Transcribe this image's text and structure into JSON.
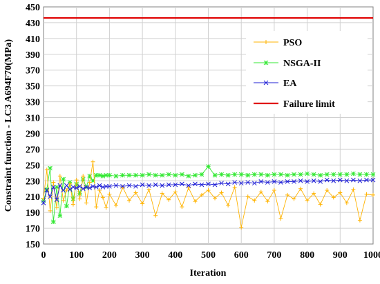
{
  "chart_data": {
    "type": "line",
    "title": "",
    "xlabel": "Iteration",
    "ylabel": "Constraint function - LC3 A694F70(MPa)",
    "xlim": [
      0,
      1000
    ],
    "ylim": [
      150,
      450
    ],
    "xticks": [
      0,
      100,
      200,
      300,
      400,
      500,
      600,
      700,
      800,
      900,
      1000
    ],
    "yticks": [
      150,
      170,
      190,
      210,
      230,
      250,
      270,
      290,
      310,
      330,
      350,
      370,
      390,
      410,
      430,
      450
    ],
    "grid": true,
    "legend_position": "top-right",
    "series": [
      {
        "name": "PSO",
        "color": "#FFB300",
        "marker": "plus",
        "x": [
          0,
          10,
          20,
          30,
          40,
          50,
          60,
          70,
          80,
          90,
          100,
          110,
          120,
          130,
          140,
          150,
          160,
          170,
          180,
          190,
          200,
          220,
          240,
          260,
          280,
          300,
          320,
          340,
          360,
          380,
          400,
          420,
          440,
          460,
          480,
          500,
          520,
          540,
          560,
          580,
          600,
          620,
          640,
          660,
          680,
          700,
          720,
          740,
          760,
          780,
          800,
          820,
          840,
          860,
          880,
          900,
          920,
          940,
          960,
          980,
          1000
        ],
        "y": [
          208,
          244,
          192,
          228,
          196,
          236,
          205,
          218,
          226,
          200,
          231,
          207,
          236,
          202,
          228,
          254,
          197,
          218,
          209,
          196,
          213,
          199,
          222,
          205,
          215,
          201,
          219,
          186,
          214,
          206,
          216,
          197,
          221,
          204,
          212,
          218,
          208,
          215,
          199,
          222,
          171,
          210,
          205,
          216,
          204,
          218,
          182,
          212,
          207,
          220,
          205,
          214,
          200,
          218,
          209,
          215,
          202,
          219,
          180,
          213,
          212
        ]
      },
      {
        "name": "NSGA-II",
        "color": "#33E833",
        "marker": "star",
        "x": [
          0,
          10,
          20,
          30,
          40,
          50,
          60,
          70,
          80,
          90,
          100,
          110,
          120,
          130,
          140,
          150,
          160,
          170,
          180,
          190,
          200,
          220,
          240,
          260,
          280,
          300,
          320,
          340,
          360,
          380,
          400,
          420,
          440,
          460,
          480,
          500,
          520,
          540,
          560,
          580,
          600,
          620,
          640,
          660,
          680,
          700,
          720,
          740,
          760,
          780,
          800,
          820,
          840,
          860,
          880,
          900,
          920,
          940,
          960,
          980,
          1000
        ],
        "y": [
          205,
          219,
          246,
          178,
          222,
          186,
          232,
          198,
          228,
          207,
          226,
          214,
          232,
          222,
          236,
          230,
          237,
          237,
          236,
          237,
          237,
          236,
          237,
          237,
          237,
          237,
          238,
          237,
          237,
          238,
          237,
          238,
          236,
          237,
          238,
          248,
          237,
          238,
          237,
          238,
          238,
          237,
          238,
          238,
          237,
          238,
          238,
          237,
          238,
          238,
          239,
          238,
          237,
          238,
          238,
          238,
          238,
          239,
          238,
          238,
          238
        ]
      },
      {
        "name": "EA",
        "color": "#1F1FD6",
        "marker": "x",
        "x": [
          0,
          10,
          20,
          30,
          40,
          50,
          60,
          70,
          80,
          90,
          100,
          110,
          120,
          130,
          140,
          150,
          160,
          170,
          180,
          190,
          200,
          220,
          240,
          260,
          280,
          300,
          320,
          340,
          360,
          380,
          400,
          420,
          440,
          460,
          480,
          500,
          520,
          540,
          560,
          580,
          600,
          620,
          640,
          660,
          680,
          700,
          720,
          740,
          760,
          780,
          800,
          820,
          840,
          860,
          880,
          900,
          920,
          940,
          960,
          980,
          1000
        ],
        "y": [
          202,
          218,
          210,
          222,
          206,
          224,
          218,
          224,
          219,
          222,
          221,
          223,
          220,
          222,
          221,
          223,
          222,
          224,
          222,
          223,
          223,
          224,
          223,
          224,
          223,
          225,
          224,
          225,
          224,
          225,
          225,
          226,
          224,
          226,
          225,
          226,
          225,
          227,
          226,
          228,
          227,
          228,
          227,
          229,
          228,
          229,
          228,
          229,
          229,
          230,
          229,
          230,
          229,
          231,
          230,
          231,
          230,
          231,
          230,
          231,
          231
        ]
      },
      {
        "name": "Failure limit",
        "color": "#E00000",
        "marker": "none",
        "x": [
          0,
          1000
        ],
        "y": [
          436,
          436
        ]
      }
    ]
  }
}
